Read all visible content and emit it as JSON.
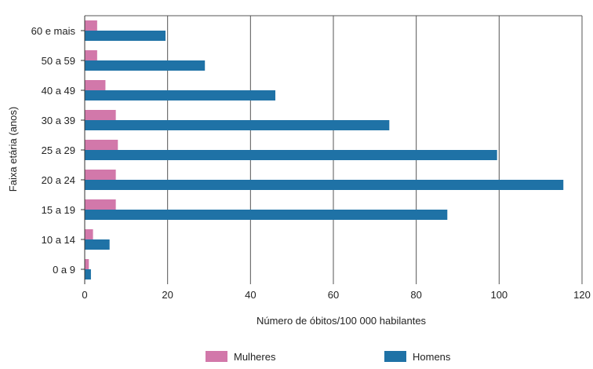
{
  "chart_data": {
    "type": "bar",
    "orientation": "horizontal",
    "categories": [
      "60 e mais",
      "50 a 59",
      "40 a 49",
      "30 a 39",
      "25 a 29",
      "20 a 24",
      "15 a 19",
      "10 a 14",
      "0 a 9"
    ],
    "series": [
      {
        "name": "Mulheres",
        "color": "#d278aa",
        "values": [
          3,
          3,
          5,
          7.5,
          8,
          7.5,
          7.5,
          2,
          1
        ]
      },
      {
        "name": "Homens",
        "color": "#1f72a6",
        "values": [
          19.5,
          29,
          46,
          73.5,
          99.5,
          115.5,
          87.5,
          6,
          1.5
        ]
      }
    ],
    "xlabel": "Número de óbitos/100 000 habilantes",
    "ylabel": "Faixa etária (anos)",
    "xlim": [
      0,
      120
    ],
    "xticks": [
      0,
      20,
      40,
      60,
      80,
      100,
      120
    ],
    "grid": "vertical",
    "legend_position": "bottom"
  }
}
